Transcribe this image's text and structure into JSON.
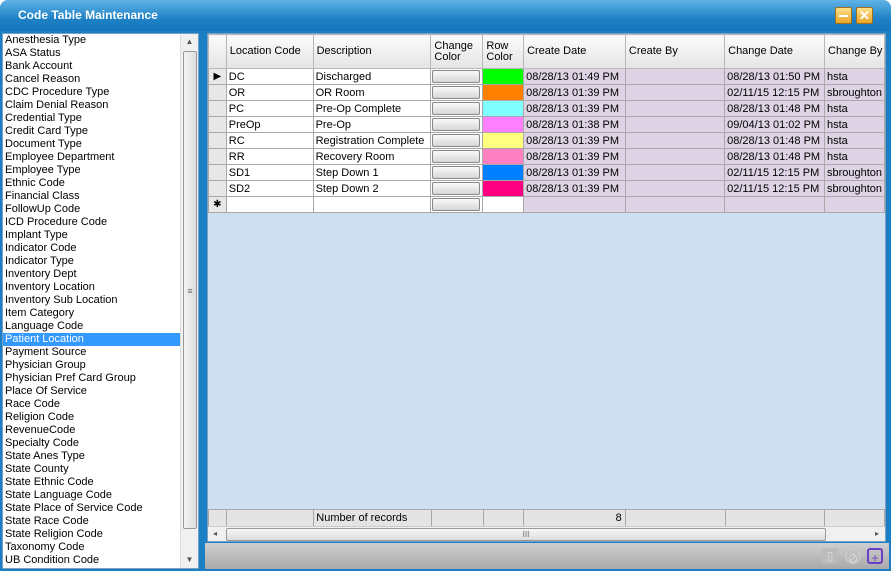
{
  "window": {
    "title": "Code Table Maintenance",
    "minimize_icon": "minimize-icon",
    "close_icon": "close-icon"
  },
  "code_tables": {
    "selected": "Patient Location",
    "items": [
      "Anesthesia Type",
      "ASA Status",
      "Bank Account",
      "Cancel Reason",
      "CDC Procedure Type",
      "Claim Denial Reason",
      "Credential Type",
      "Credit Card Type",
      "Document Type",
      "Employee Department",
      "Employee Type",
      "Ethnic Code",
      "Financial Class",
      "FollowUp Code",
      "ICD Procedure Code",
      "Implant Type",
      "Indicator Code",
      "Indicator Type",
      "Inventory Dept",
      "Inventory Location",
      "Inventory Sub Location",
      "Item Category",
      "Language Code",
      "Patient Location",
      "Payment Source",
      "Physician Group",
      "Physician Pref Card Group",
      "Place Of Service",
      "Race Code",
      "Religion Code",
      "RevenueCode",
      "Specialty Code",
      "State Anes Type",
      "State County",
      "State Ethnic Code",
      "State Language Code",
      "State Place of Service Code",
      "State Race Code",
      "State Religion Code",
      "Taxonomy Code",
      "UB Condition Code"
    ]
  },
  "grid": {
    "columns": [
      "Location Code",
      "Description",
      "Change Color",
      "Row Color",
      "Create Date",
      "Create By",
      "Change Date",
      "Change By"
    ],
    "rows": [
      {
        "code": "DC",
        "description": "Discharged",
        "color": "#00ff00",
        "create_date": "08/28/13 01:49 PM",
        "create_by": "",
        "change_date": "08/28/13 01:50 PM",
        "change_by": "hsta"
      },
      {
        "code": "OR",
        "description": "OR Room",
        "color": "#ff8000",
        "create_date": "08/28/13 01:39 PM",
        "create_by": "",
        "change_date": "02/11/15 12:15 PM",
        "change_by": "sbroughton"
      },
      {
        "code": "PC",
        "description": "Pre-Op Complete",
        "color": "#80ffff",
        "create_date": "08/28/13 01:39 PM",
        "create_by": "",
        "change_date": "08/28/13 01:48 PM",
        "change_by": "hsta"
      },
      {
        "code": "PreOp",
        "description": "Pre-Op",
        "color": "#ff80ff",
        "create_date": "08/28/13 01:38 PM",
        "create_by": "",
        "change_date": "09/04/13 01:02 PM",
        "change_by": "hsta"
      },
      {
        "code": "RC",
        "description": "Registration Complete",
        "color": "#ffff80",
        "create_date": "08/28/13 01:39 PM",
        "create_by": "",
        "change_date": "08/28/13 01:48 PM",
        "change_by": "hsta"
      },
      {
        "code": "RR",
        "description": "Recovery Room",
        "color": "#ff80c0",
        "create_date": "08/28/13 01:39 PM",
        "create_by": "",
        "change_date": "08/28/13 01:48 PM",
        "change_by": "hsta"
      },
      {
        "code": "SD1",
        "description": "Step Down 1",
        "color": "#0080ff",
        "create_date": "08/28/13 01:39 PM",
        "create_by": "",
        "change_date": "02/11/15 12:15 PM",
        "change_by": "sbroughton"
      },
      {
        "code": "SD2",
        "description": "Step Down 2",
        "color": "#ff0080",
        "create_date": "08/28/13 01:39 PM",
        "create_by": "",
        "change_date": "02/11/15 12:15 PM",
        "change_by": "sbroughton"
      }
    ],
    "footer": {
      "label": "Number of records",
      "count": "8"
    }
  },
  "toolbar": {
    "icons": [
      "delete-icon",
      "cancel-icon",
      "add-record-icon"
    ]
  }
}
